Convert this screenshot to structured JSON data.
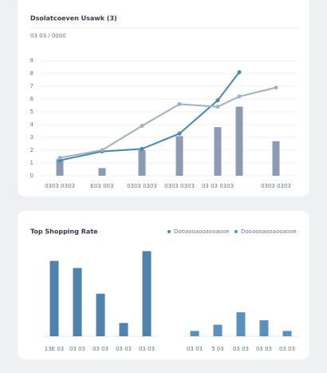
{
  "chart_data": [
    {
      "type": "combo",
      "title": "Dsolatcoeven Usawk (3)",
      "subtitle": "03 03 / 0000",
      "categories": [
        "0303 0303",
        "E03 003",
        "0303 0303",
        "0303 0303",
        "03 03 0303",
        null,
        "0303 0303"
      ],
      "bars": {
        "color": "#8a9bb3",
        "values": [
          1.3,
          0.6,
          2.0,
          3.1,
          3.8,
          5.4,
          2.7
        ]
      },
      "series": [
        {
          "color": "#4a86ad",
          "values": [
            1.2,
            1.9,
            2.1,
            3.3,
            5.9,
            8.1,
            null
          ]
        },
        {
          "color": "#9fb1c2",
          "values": [
            1.4,
            2.0,
            3.9,
            5.6,
            5.4,
            6.2,
            6.9
          ]
        }
      ],
      "ylim": [
        0,
        9
      ],
      "yticks": [
        0,
        1,
        2,
        3,
        4,
        5,
        6,
        7,
        8,
        9
      ],
      "grid": true
    },
    {
      "type": "bar",
      "title": "Top Shopping Rate",
      "ylim": [
        0,
        100
      ],
      "panels": [
        {
          "name": "Dooaooaooaooaooe",
          "color": "#4f82ad",
          "categories": [
            "13E 03",
            "03 03",
            "03 03",
            "03 03",
            "03 03"
          ],
          "values": [
            85,
            77,
            48,
            15,
            96
          ]
        },
        {
          "name": "Dooaooaooaooaooe",
          "color": "#5b8fbd",
          "categories": [
            "03 03",
            "5 03",
            "03 03",
            "03 03",
            "03 03"
          ],
          "values": [
            6,
            13,
            27,
            18,
            6
          ]
        }
      ]
    }
  ]
}
